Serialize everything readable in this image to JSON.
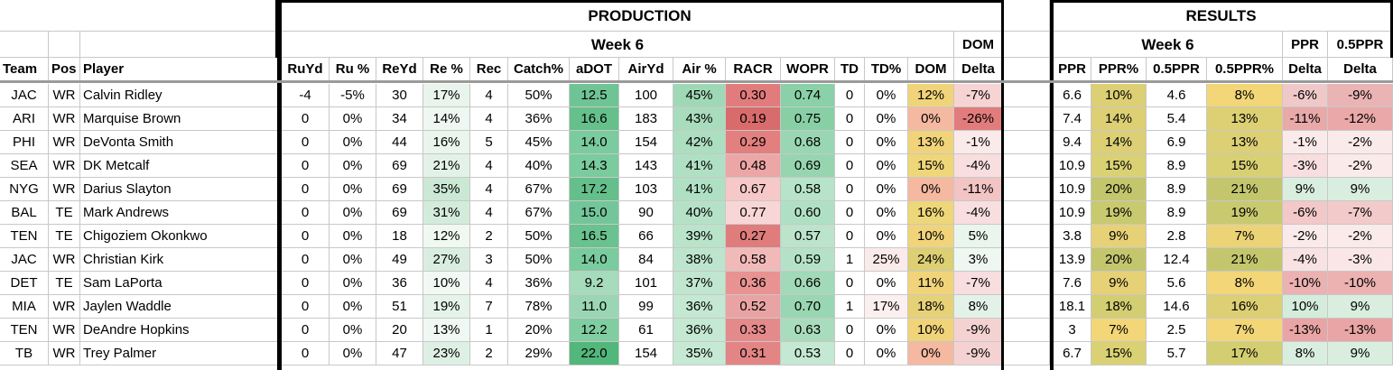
{
  "banner": {
    "production": "PRODUCTION",
    "results": "RESULTS"
  },
  "subheader": {
    "production_week": "Week 6",
    "dom": "DOM",
    "results_week": "Week 6",
    "ppr": "PPR",
    "half_ppr": "0.5PPR"
  },
  "columns": [
    "Team",
    "Pos",
    "Player",
    "RuYd",
    "Ru %",
    "ReYd",
    "Re %",
    "Rec",
    "Catch%",
    "aDOT",
    "AirYd",
    "Air %",
    "RACR",
    "WOPR",
    "TD",
    "TD%",
    "DOM",
    "Delta",
    "PPR",
    "PPR%",
    "0.5PPR",
    "0.5PPR%",
    "Delta",
    "Delta"
  ],
  "rows": [
    [
      "JAC",
      "WR",
      "Calvin Ridley",
      "-4",
      "-5%",
      "30",
      "17%",
      "4",
      "50%",
      "12.5",
      "100",
      "45%",
      "0.30",
      "0.74",
      "0",
      "0%",
      "12%",
      "-7%",
      "6.6",
      "10%",
      "4.6",
      "8%",
      "-6%",
      "-9%"
    ],
    [
      "ARI",
      "WR",
      "Marquise Brown",
      "0",
      "0%",
      "34",
      "14%",
      "4",
      "36%",
      "16.6",
      "183",
      "43%",
      "0.19",
      "0.75",
      "0",
      "0%",
      "0%",
      "-26%",
      "7.4",
      "14%",
      "5.4",
      "13%",
      "-11%",
      "-12%"
    ],
    [
      "PHI",
      "WR",
      "DeVonta Smith",
      "0",
      "0%",
      "44",
      "16%",
      "5",
      "45%",
      "14.0",
      "154",
      "42%",
      "0.29",
      "0.68",
      "0",
      "0%",
      "13%",
      "-1%",
      "9.4",
      "14%",
      "6.9",
      "13%",
      "-1%",
      "-2%"
    ],
    [
      "SEA",
      "WR",
      "DK Metcalf",
      "0",
      "0%",
      "69",
      "21%",
      "4",
      "40%",
      "14.3",
      "143",
      "41%",
      "0.48",
      "0.69",
      "0",
      "0%",
      "15%",
      "-4%",
      "10.9",
      "15%",
      "8.9",
      "15%",
      "-3%",
      "-2%"
    ],
    [
      "NYG",
      "WR",
      "Darius Slayton",
      "0",
      "0%",
      "69",
      "35%",
      "4",
      "67%",
      "17.2",
      "103",
      "41%",
      "0.67",
      "0.58",
      "0",
      "0%",
      "0%",
      "-11%",
      "10.9",
      "20%",
      "8.9",
      "21%",
      "9%",
      "9%"
    ],
    [
      "BAL",
      "TE",
      "Mark Andrews",
      "0",
      "0%",
      "69",
      "31%",
      "4",
      "67%",
      "15.0",
      "90",
      "40%",
      "0.77",
      "0.60",
      "0",
      "0%",
      "16%",
      "-4%",
      "10.9",
      "19%",
      "8.9",
      "19%",
      "-6%",
      "-7%"
    ],
    [
      "TEN",
      "TE",
      "Chigoziem Okonkwo",
      "0",
      "0%",
      "18",
      "12%",
      "2",
      "50%",
      "16.5",
      "66",
      "39%",
      "0.27",
      "0.57",
      "0",
      "0%",
      "10%",
      "5%",
      "3.8",
      "9%",
      "2.8",
      "7%",
      "-2%",
      "-2%"
    ],
    [
      "JAC",
      "WR",
      "Christian Kirk",
      "0",
      "0%",
      "49",
      "27%",
      "3",
      "50%",
      "14.0",
      "84",
      "38%",
      "0.58",
      "0.59",
      "1",
      "25%",
      "24%",
      "3%",
      "13.9",
      "20%",
      "12.4",
      "21%",
      "-4%",
      "-3%"
    ],
    [
      "DET",
      "TE",
      "Sam LaPorta",
      "0",
      "0%",
      "36",
      "10%",
      "4",
      "36%",
      "9.2",
      "101",
      "37%",
      "0.36",
      "0.66",
      "0",
      "0%",
      "11%",
      "-7%",
      "7.6",
      "9%",
      "5.6",
      "8%",
      "-10%",
      "-10%"
    ],
    [
      "MIA",
      "WR",
      "Jaylen Waddle",
      "0",
      "0%",
      "51",
      "19%",
      "7",
      "78%",
      "11.0",
      "99",
      "36%",
      "0.52",
      "0.70",
      "1",
      "17%",
      "18%",
      "8%",
      "18.1",
      "18%",
      "14.6",
      "16%",
      "10%",
      "9%"
    ],
    [
      "TEN",
      "WR",
      "DeAndre Hopkins",
      "0",
      "0%",
      "20",
      "13%",
      "1",
      "20%",
      "12.2",
      "61",
      "36%",
      "0.33",
      "0.63",
      "0",
      "0%",
      "10%",
      "-9%",
      "3",
      "7%",
      "2.5",
      "7%",
      "-13%",
      "-13%"
    ],
    [
      "TB",
      "WR",
      "Trey Palmer",
      "0",
      "0%",
      "47",
      "23%",
      "2",
      "29%",
      "22.0",
      "154",
      "35%",
      "0.31",
      "0.53",
      "0",
      "0%",
      "0%",
      "-9%",
      "6.7",
      "15%",
      "5.7",
      "17%",
      "8%",
      "9%"
    ]
  ],
  "fills": [
    [
      "",
      "",
      "",
      "",
      "",
      "",
      "#e8f4ec",
      "",
      "",
      "#6fc496",
      "",
      "#9fd8b5",
      "#e27c7c",
      "#8ad0a8",
      "",
      "",
      "#f1d47a",
      "#f7d4d4",
      "",
      "#dccf74",
      "",
      "#f2d677",
      "#f0c8c8",
      "#eab4b4"
    ],
    [
      "",
      "",
      "",
      "",
      "",
      "",
      "#eef7f1",
      "",
      "",
      "#66c08c",
      "",
      "#a8dcbc",
      "#d86b6b",
      "#88cfa6",
      "",
      "",
      "#f4b9a0",
      "#e27c7c",
      "",
      "#dccf74",
      "",
      "#dccf74",
      "#e9a9a9",
      "#eaa8a8"
    ],
    [
      "",
      "",
      "",
      "",
      "",
      "",
      "#eaf5ed",
      "",
      "",
      "#7acb9e",
      "",
      "#acdec0",
      "#e37f7f",
      "#99d6b2",
      "",
      "",
      "#f1d47a",
      "#fbeaea",
      "",
      "#dccf74",
      "",
      "#dccf74",
      "#fbeaea",
      "#fbeaea"
    ],
    [
      "",
      "",
      "",
      "",
      "",
      "",
      "#e3f2e8",
      "",
      "",
      "#7acb9e",
      "",
      "#b0e0c4",
      "#eda6a6",
      "#97d5b0",
      "",
      "",
      "#efd678",
      "#f8dede",
      "",
      "#d9d173",
      "",
      "#d8d072",
      "#f8dede",
      "#fbeaea"
    ],
    [
      "",
      "",
      "",
      "",
      "",
      "",
      "#cbe8d4",
      "",
      "",
      "#65bf8b",
      "",
      "#b0e0c4",
      "#f6c8c8",
      "#b7e3c8",
      "",
      "",
      "#f4b9a0",
      "#f2c4c4",
      "",
      "#c3c66d",
      "",
      "#c3c66d",
      "#d9eedf",
      "#d9eedf"
    ],
    [
      "",
      "",
      "",
      "",
      "",
      "",
      "#d3ebdb",
      "",
      "",
      "#72c69a",
      "",
      "#b5e2c7",
      "#f9d6d6",
      "#b0e0c4",
      "",
      "",
      "#eed778",
      "#f8dede",
      "",
      "#c9c96f",
      "",
      "#c9c96f",
      "#f2c8c8",
      "#f3caca"
    ],
    [
      "",
      "",
      "",
      "",
      "",
      "",
      "#f0f8f2",
      "",
      "",
      "#69c28f",
      "",
      "#b9e4ca",
      "#e07c7c",
      "#bbe4cb",
      "",
      "",
      "#f1d47a",
      "#eaf5ed",
      "",
      "#e6d176",
      "",
      "#ebd376",
      "#fbeaea",
      "#fbeaea"
    ],
    [
      "",
      "",
      "",
      "",
      "",
      "",
      "#d9eee0",
      "",
      "",
      "#7acb9e",
      "",
      "#bde5cd",
      "#f2b9b9",
      "#b5e2c7",
      "",
      "#fbeaea",
      "#dccf74",
      "#eef7f1",
      "",
      "#c3c66d",
      "",
      "#c3c66d",
      "#f8e2e2",
      "#fae6e6"
    ],
    [
      "",
      "",
      "",
      "",
      "",
      "",
      "#f2f9f4",
      "",
      "",
      "#a6dbbb",
      "",
      "#c1e6d0",
      "#e99292",
      "#a2d9b8",
      "",
      "",
      "#f1d47a",
      "#f8dede",
      "",
      "#e6d176",
      "",
      "#f2d677",
      "#ecb1b1",
      "#ecb1b1"
    ],
    [
      "",
      "",
      "",
      "",
      "",
      "",
      "#e5f3ea",
      "",
      "",
      "#9ad6b3",
      "",
      "#c4e8d2",
      "#eaa3a3",
      "#99d6b2",
      "",
      "#fcefef",
      "#e6d176",
      "#e3f2e8",
      "",
      "#d3ce71",
      "",
      "#dccf74",
      "#d4ecdc",
      "#d9eedf"
    ],
    [
      "",
      "",
      "",
      "",
      "",
      "",
      "#eff8f2",
      "",
      "",
      "#80cda2",
      "",
      "#c4e8d2",
      "#e58a8a",
      "#a8dcbc",
      "",
      "",
      "#f1d47a",
      "#f5d2d2",
      "",
      "#f2d677",
      "",
      "#f2d677",
      "#e9a5a5",
      "#e9a5a5"
    ],
    [
      "",
      "",
      "",
      "",
      "",
      "",
      "#def0e4",
      "",
      "",
      "#52b77b",
      "",
      "#c6e9d4",
      "#e38585",
      "#c4e8d2",
      "",
      "",
      "#f4b9a0",
      "#f5d2d2",
      "",
      "#d9d173",
      "",
      "#d3ce71",
      "#d9eedf",
      "#d9eedf"
    ]
  ]
}
